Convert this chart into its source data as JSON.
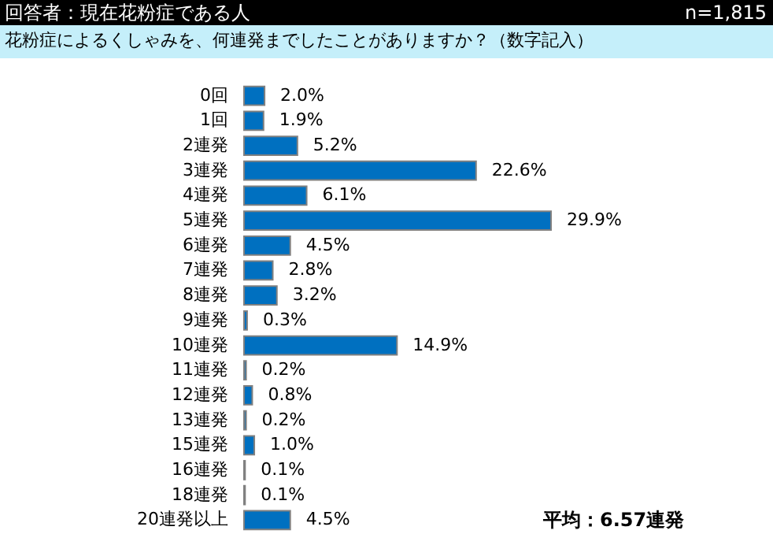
{
  "chart_data": {
    "type": "bar",
    "orientation": "horizontal",
    "title": "回答者：現在花粉症である人",
    "subtitle": "花粉症によるくしゃみを、何連発までしたことがありますか？（数字記入）",
    "annotations": [
      "n=1,815",
      "平均：6.57連発"
    ],
    "categories": [
      "0回",
      "1回",
      "2連発",
      "3連発",
      "4連発",
      "5連発",
      "6連発",
      "7連発",
      "8連発",
      "9連発",
      "10連発",
      "11連発",
      "12連発",
      "13連発",
      "15連発",
      "16連発",
      "18連発",
      "20連発以上"
    ],
    "values": [
      2.0,
      1.9,
      5.2,
      22.6,
      6.1,
      29.9,
      4.5,
      2.8,
      3.2,
      0.3,
      14.9,
      0.2,
      0.8,
      0.2,
      1.0,
      0.1,
      0.1,
      4.5
    ],
    "value_labels": [
      "2.0%",
      "1.9%",
      "5.2%",
      "22.6%",
      "6.1%",
      "29.9%",
      "4.5%",
      "2.8%",
      "3.2%",
      "0.3%",
      "14.9%",
      "0.2%",
      "0.8%",
      "0.2%",
      "1.0%",
      "0.1%",
      "0.1%",
      "4.5%"
    ],
    "color": "#0070c0"
  }
}
